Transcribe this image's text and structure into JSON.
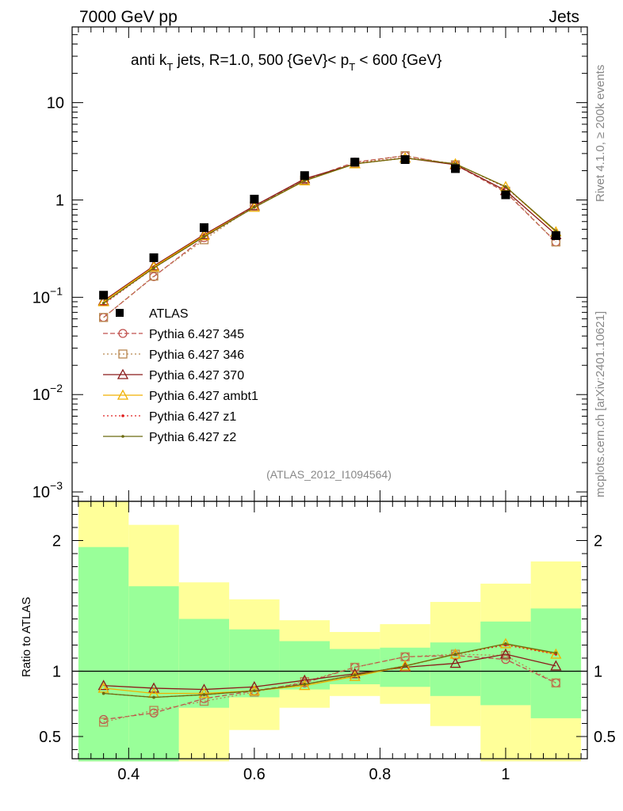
{
  "header": {
    "left": "7000 GeV pp",
    "right": "Jets",
    "title_main": "anti k",
    "title_sub_T": "T",
    "title_mid": " jets, R=1.0,  500 {GeV}< p",
    "title_sub_T2": "T",
    "title_end": " < 600 {GeV}",
    "side_rivet": "Rivet 4.1.0, ≥ 200k events",
    "side_mcplots": "mcplots.cern.ch [arXiv:2401.10621]",
    "analysis_id": "(ATLAS_2012_I1094564)"
  },
  "ratio_axis_label": "Ratio to ATLAS",
  "colors": {
    "atlas": "#000000",
    "p345": "#c0504d",
    "p346": "#b8864e",
    "p370": "#8b1a1a",
    "ambt1": "#f0b000",
    "z1": "#e02020",
    "z2": "#6b6b10",
    "band_inner": "#99ff99",
    "band_outer": "#ffff99"
  },
  "chart_data": {
    "type": "line",
    "x": [
      0.36,
      0.44,
      0.52,
      0.6,
      0.68,
      0.76,
      0.84,
      0.92,
      1.0,
      1.08
    ],
    "bin_edges": [
      0.32,
      0.4,
      0.48,
      0.56,
      0.64,
      0.72,
      0.8,
      0.88,
      0.96,
      1.04,
      1.12
    ],
    "xlim": [
      0.31,
      1.13
    ],
    "main": {
      "yscale": "log",
      "ylim": [
        0.0008,
        60
      ],
      "yticks": [
        {
          "v": 10,
          "t": "10"
        },
        {
          "v": 1,
          "t": "1"
        },
        {
          "v": 0.1,
          "base": "10",
          "exp": "−1"
        },
        {
          "v": 0.01,
          "base": "10",
          "exp": "−2"
        },
        {
          "v": 0.001,
          "base": "10",
          "exp": "−3"
        }
      ]
    },
    "ratio": {
      "ylim": [
        0.33,
        2.3
      ],
      "yticks": [
        {
          "v": 0.5,
          "t": "0.5"
        },
        {
          "v": 1,
          "t": "1"
        },
        {
          "v": 2,
          "t": "2"
        }
      ]
    },
    "xticks": [
      {
        "v": 0.4,
        "t": "0.4"
      },
      {
        "v": 0.6,
        "t": "0.6"
      },
      {
        "v": 0.8,
        "t": "0.8"
      },
      {
        "v": 1.0,
        "t": "1"
      }
    ],
    "series": [
      {
        "name": "ATLAS",
        "key": "atlas",
        "marker": "square",
        "dash": "none",
        "values": [
          0.105,
          0.255,
          0.52,
          1.02,
          1.78,
          2.45,
          2.6,
          2.1,
          1.13,
          0.43
        ]
      },
      {
        "name": "Pythia 6.427 345",
        "key": "p345",
        "marker": "circle",
        "dash": "6,3",
        "values": [
          0.062,
          0.163,
          0.41,
          0.87,
          1.6,
          2.45,
          2.85,
          2.3,
          1.2,
          0.37
        ],
        "ratio": [
          0.63,
          0.68,
          0.79,
          0.85,
          0.91,
          1.03,
          1.11,
          1.12,
          1.09,
          0.91
        ]
      },
      {
        "name": "Pythia 6.427 346",
        "key": "p346",
        "marker": "openSquare",
        "dash": "2,3",
        "values": [
          0.062,
          0.165,
          0.39,
          0.87,
          1.6,
          2.4,
          2.85,
          2.3,
          1.23,
          0.37
        ],
        "ratio": [
          0.61,
          0.7,
          0.77,
          0.84,
          0.92,
          1.03,
          1.11,
          1.13,
          1.12,
          0.91
        ]
      },
      {
        "name": "Pythia 6.427 370",
        "key": "p370",
        "marker": "triangle",
        "dash": "none",
        "values": [
          0.092,
          0.21,
          0.44,
          0.87,
          1.65,
          2.35,
          2.7,
          2.3,
          1.25,
          0.44
        ],
        "ratio": [
          0.89,
          0.87,
          0.86,
          0.88,
          0.93,
          0.98,
          1.03,
          1.06,
          1.13,
          1.04
        ]
      },
      {
        "name": "Pythia 6.427 ambt1",
        "key": "ambt1",
        "marker": "triangle",
        "dash": "none",
        "values": [
          0.09,
          0.205,
          0.43,
          0.84,
          1.57,
          2.35,
          2.7,
          2.35,
          1.37,
          0.47
        ],
        "ratio": [
          0.87,
          0.83,
          0.83,
          0.85,
          0.89,
          0.96,
          1.04,
          1.13,
          1.21,
          1.13
        ]
      },
      {
        "name": "Pythia 6.427 z1",
        "key": "z1",
        "marker": "dot",
        "dash": "2,3",
        "values": [
          0.085,
          0.2,
          0.42,
          0.84,
          1.58,
          2.37,
          2.72,
          2.35,
          1.35,
          0.48
        ],
        "ratio": [
          0.83,
          0.8,
          0.82,
          0.85,
          0.9,
          0.97,
          1.04,
          1.13,
          1.2,
          1.13
        ]
      },
      {
        "name": "Pythia 6.427 z2",
        "key": "z2",
        "marker": "dot",
        "dash": "none",
        "values": [
          0.087,
          0.2,
          0.42,
          0.84,
          1.58,
          2.35,
          2.7,
          2.35,
          1.37,
          0.48
        ],
        "ratio": [
          0.83,
          0.8,
          0.82,
          0.85,
          0.9,
          0.97,
          1.04,
          1.13,
          1.21,
          1.14
        ]
      }
    ],
    "bands": {
      "inner_lo": [
        0.31,
        0.31,
        0.72,
        0.8,
        0.86,
        0.9,
        0.88,
        0.81,
        0.74,
        0.64
      ],
      "inner_hi": [
        1.95,
        1.65,
        1.4,
        1.32,
        1.23,
        1.17,
        1.18,
        1.22,
        1.38,
        1.48
      ],
      "outer_lo": [
        0.31,
        0.31,
        0.31,
        0.55,
        0.72,
        0.81,
        0.75,
        0.58,
        0.31,
        0.31
      ],
      "outer_hi": [
        2.3,
        2.12,
        1.68,
        1.55,
        1.39,
        1.3,
        1.36,
        1.53,
        1.67,
        1.84
      ]
    }
  }
}
